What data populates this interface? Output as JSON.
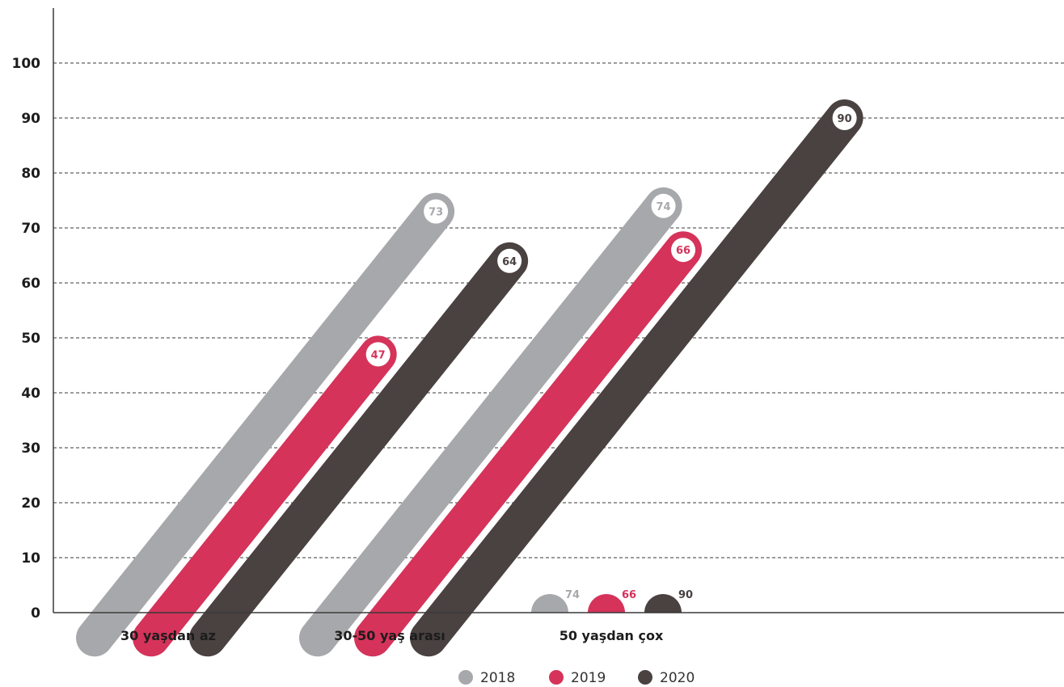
{
  "chart_data": {
    "type": "bar",
    "categories": [
      "30 yaşdan az",
      "30-50 yaş arası",
      "50 yaşdan çox"
    ],
    "series": [
      {
        "name": "2018",
        "color": "#a7a8ab",
        "values": [
          73,
          74,
          74
        ]
      },
      {
        "name": "2019",
        "color": "#d5335a",
        "values": [
          47,
          66,
          66
        ]
      },
      {
        "name": "2020",
        "color": "#4a4141",
        "values": [
          64,
          90,
          90
        ]
      }
    ],
    "y_ticks": [
      "0",
      "10",
      "20",
      "30",
      "40",
      "50",
      "60",
      "70",
      "80",
      "90",
      "100"
    ],
    "ylim": [
      0,
      100
    ],
    "grid": true,
    "legend_position": "bottom"
  }
}
